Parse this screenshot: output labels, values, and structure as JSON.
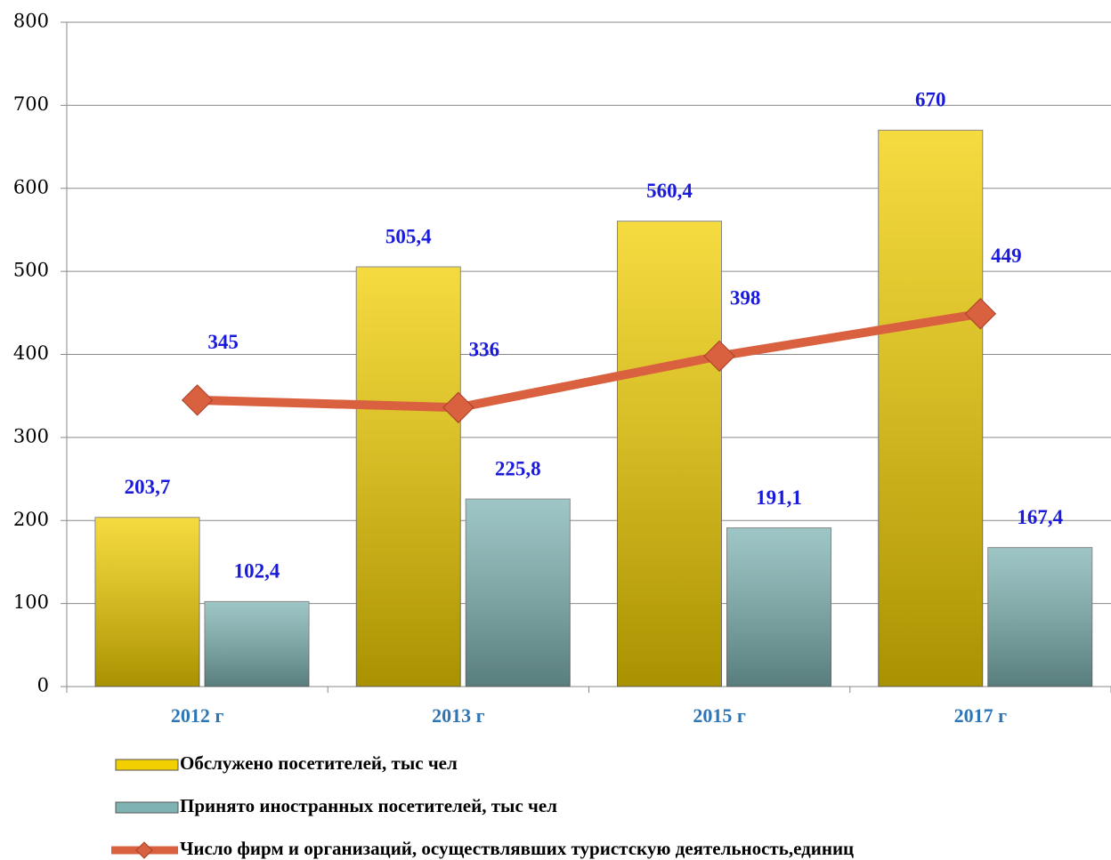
{
  "chart_data": {
    "type": "bar",
    "categories": [
      "2012 г",
      "2013 г",
      "2015 г",
      "2017 г"
    ],
    "series": [
      {
        "name": "Обслужено посетителей, тыс чел",
        "type": "bar",
        "color": "#f2cf00",
        "values": [
          203.7,
          505.4,
          560.4,
          670
        ],
        "value_labels": [
          "203,7",
          "505,4",
          "560,4",
          "670"
        ]
      },
      {
        "name": "Принято иностранных посетителей, тыс чел",
        "type": "bar",
        "color": "#7fb3b3",
        "values": [
          102.4,
          225.8,
          191.1,
          167.4
        ],
        "value_labels": [
          "102,4",
          "225,8",
          "191,1",
          "167,4"
        ]
      },
      {
        "name": "Число фирм и организаций, осуществлявших туристскую деятельность,единиц",
        "type": "line",
        "color": "#d9613f",
        "values": [
          345,
          336,
          398,
          449
        ]
      }
    ],
    "ylim": [
      0,
      800
    ],
    "yticks": [
      0,
      100,
      200,
      300,
      400,
      500,
      600,
      700,
      800
    ],
    "grid": true,
    "legend": "bottom"
  }
}
